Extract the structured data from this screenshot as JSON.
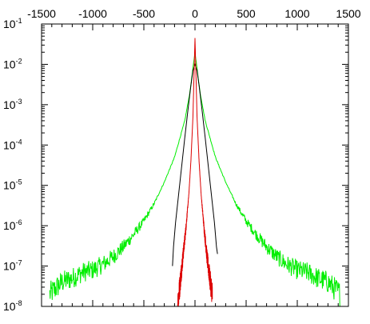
{
  "chart_data": {
    "type": "line",
    "title": "",
    "xlabel": "",
    "ylabel": "",
    "x_axis_position": "top",
    "xlim": [
      -1500,
      1500
    ],
    "ylim": [
      1e-08,
      0.1
    ],
    "y_scale": "log",
    "grid": false,
    "legend": "none",
    "x_ticks": [
      {
        "value": -1500,
        "label": "-1500"
      },
      {
        "value": -1000,
        "label": "-1000"
      },
      {
        "value": -500,
        "label": "-500"
      },
      {
        "value": 0,
        "label": "0"
      },
      {
        "value": 500,
        "label": "500"
      },
      {
        "value": 1000,
        "label": "1000"
      },
      {
        "value": 1500,
        "label": "1500"
      }
    ],
    "y_ticks": [
      {
        "value": 1e-08,
        "base": "10",
        "exp": "-8"
      },
      {
        "value": 1e-07,
        "base": "10",
        "exp": "-7"
      },
      {
        "value": 1e-06,
        "base": "10",
        "exp": "-6"
      },
      {
        "value": 1e-05,
        "base": "10",
        "exp": "-5"
      },
      {
        "value": 0.0001,
        "base": "10",
        "exp": "-4"
      },
      {
        "value": 0.001,
        "base": "10",
        "exp": "-3"
      },
      {
        "value": 0.01,
        "base": "10",
        "exp": "-2"
      },
      {
        "value": 0.1,
        "base": "10",
        "exp": "-1"
      }
    ],
    "series": [
      {
        "color": "#00ee00",
        "noisy": true,
        "x": [
          -1420,
          -1300,
          -1200,
          -1100,
          -1000,
          -900,
          -800,
          -700,
          -600,
          -500,
          -400,
          -300,
          -200,
          -100,
          -50,
          0,
          50,
          100,
          200,
          300,
          400,
          500,
          600,
          700,
          800,
          900,
          1000,
          1100,
          1200,
          1300,
          1420
        ],
        "y": [
          2e-08,
          4e-08,
          5e-08,
          7e-08,
          8e-08,
          1.1e-07,
          1.7e-07,
          3e-07,
          6e-07,
          1.3e-06,
          3.5e-06,
          1.2e-05,
          5e-05,
          0.0004,
          0.002,
          0.02,
          0.002,
          0.0004,
          5e-05,
          1.2e-05,
          3.5e-06,
          1.3e-06,
          6e-07,
          3e-07,
          1.7e-07,
          1.1e-07,
          8e-08,
          7e-08,
          5e-08,
          4e-08,
          2e-08
        ]
      },
      {
        "color": "#000000",
        "noisy": false,
        "x": [
          -220,
          -210,
          -190,
          -160,
          -130,
          -100,
          -70,
          -40,
          -20,
          0,
          20,
          40,
          70,
          100,
          130,
          160,
          190,
          210,
          220
        ],
        "y": [
          1e-07,
          3e-07,
          1.2e-06,
          6e-06,
          3e-05,
          0.00015,
          0.0007,
          0.003,
          0.007,
          0.01,
          0.007,
          0.003,
          0.0007,
          0.00015,
          3e-05,
          6e-06,
          1.2e-06,
          3e-07,
          2e-07
        ]
      },
      {
        "color": "#dd0000",
        "noisy": true,
        "x": [
          -170,
          -150,
          -120,
          -90,
          -60,
          -40,
          -20,
          -10,
          0,
          10,
          20,
          40,
          60,
          90,
          120,
          150,
          170
        ],
        "y": [
          1e-08,
          3e-08,
          1.5e-07,
          8e-07,
          6e-06,
          4e-05,
          0.0005,
          0.005,
          0.045,
          0.005,
          0.0005,
          4e-05,
          6e-06,
          8e-07,
          1.5e-07,
          4e-08,
          2e-08
        ]
      }
    ]
  }
}
